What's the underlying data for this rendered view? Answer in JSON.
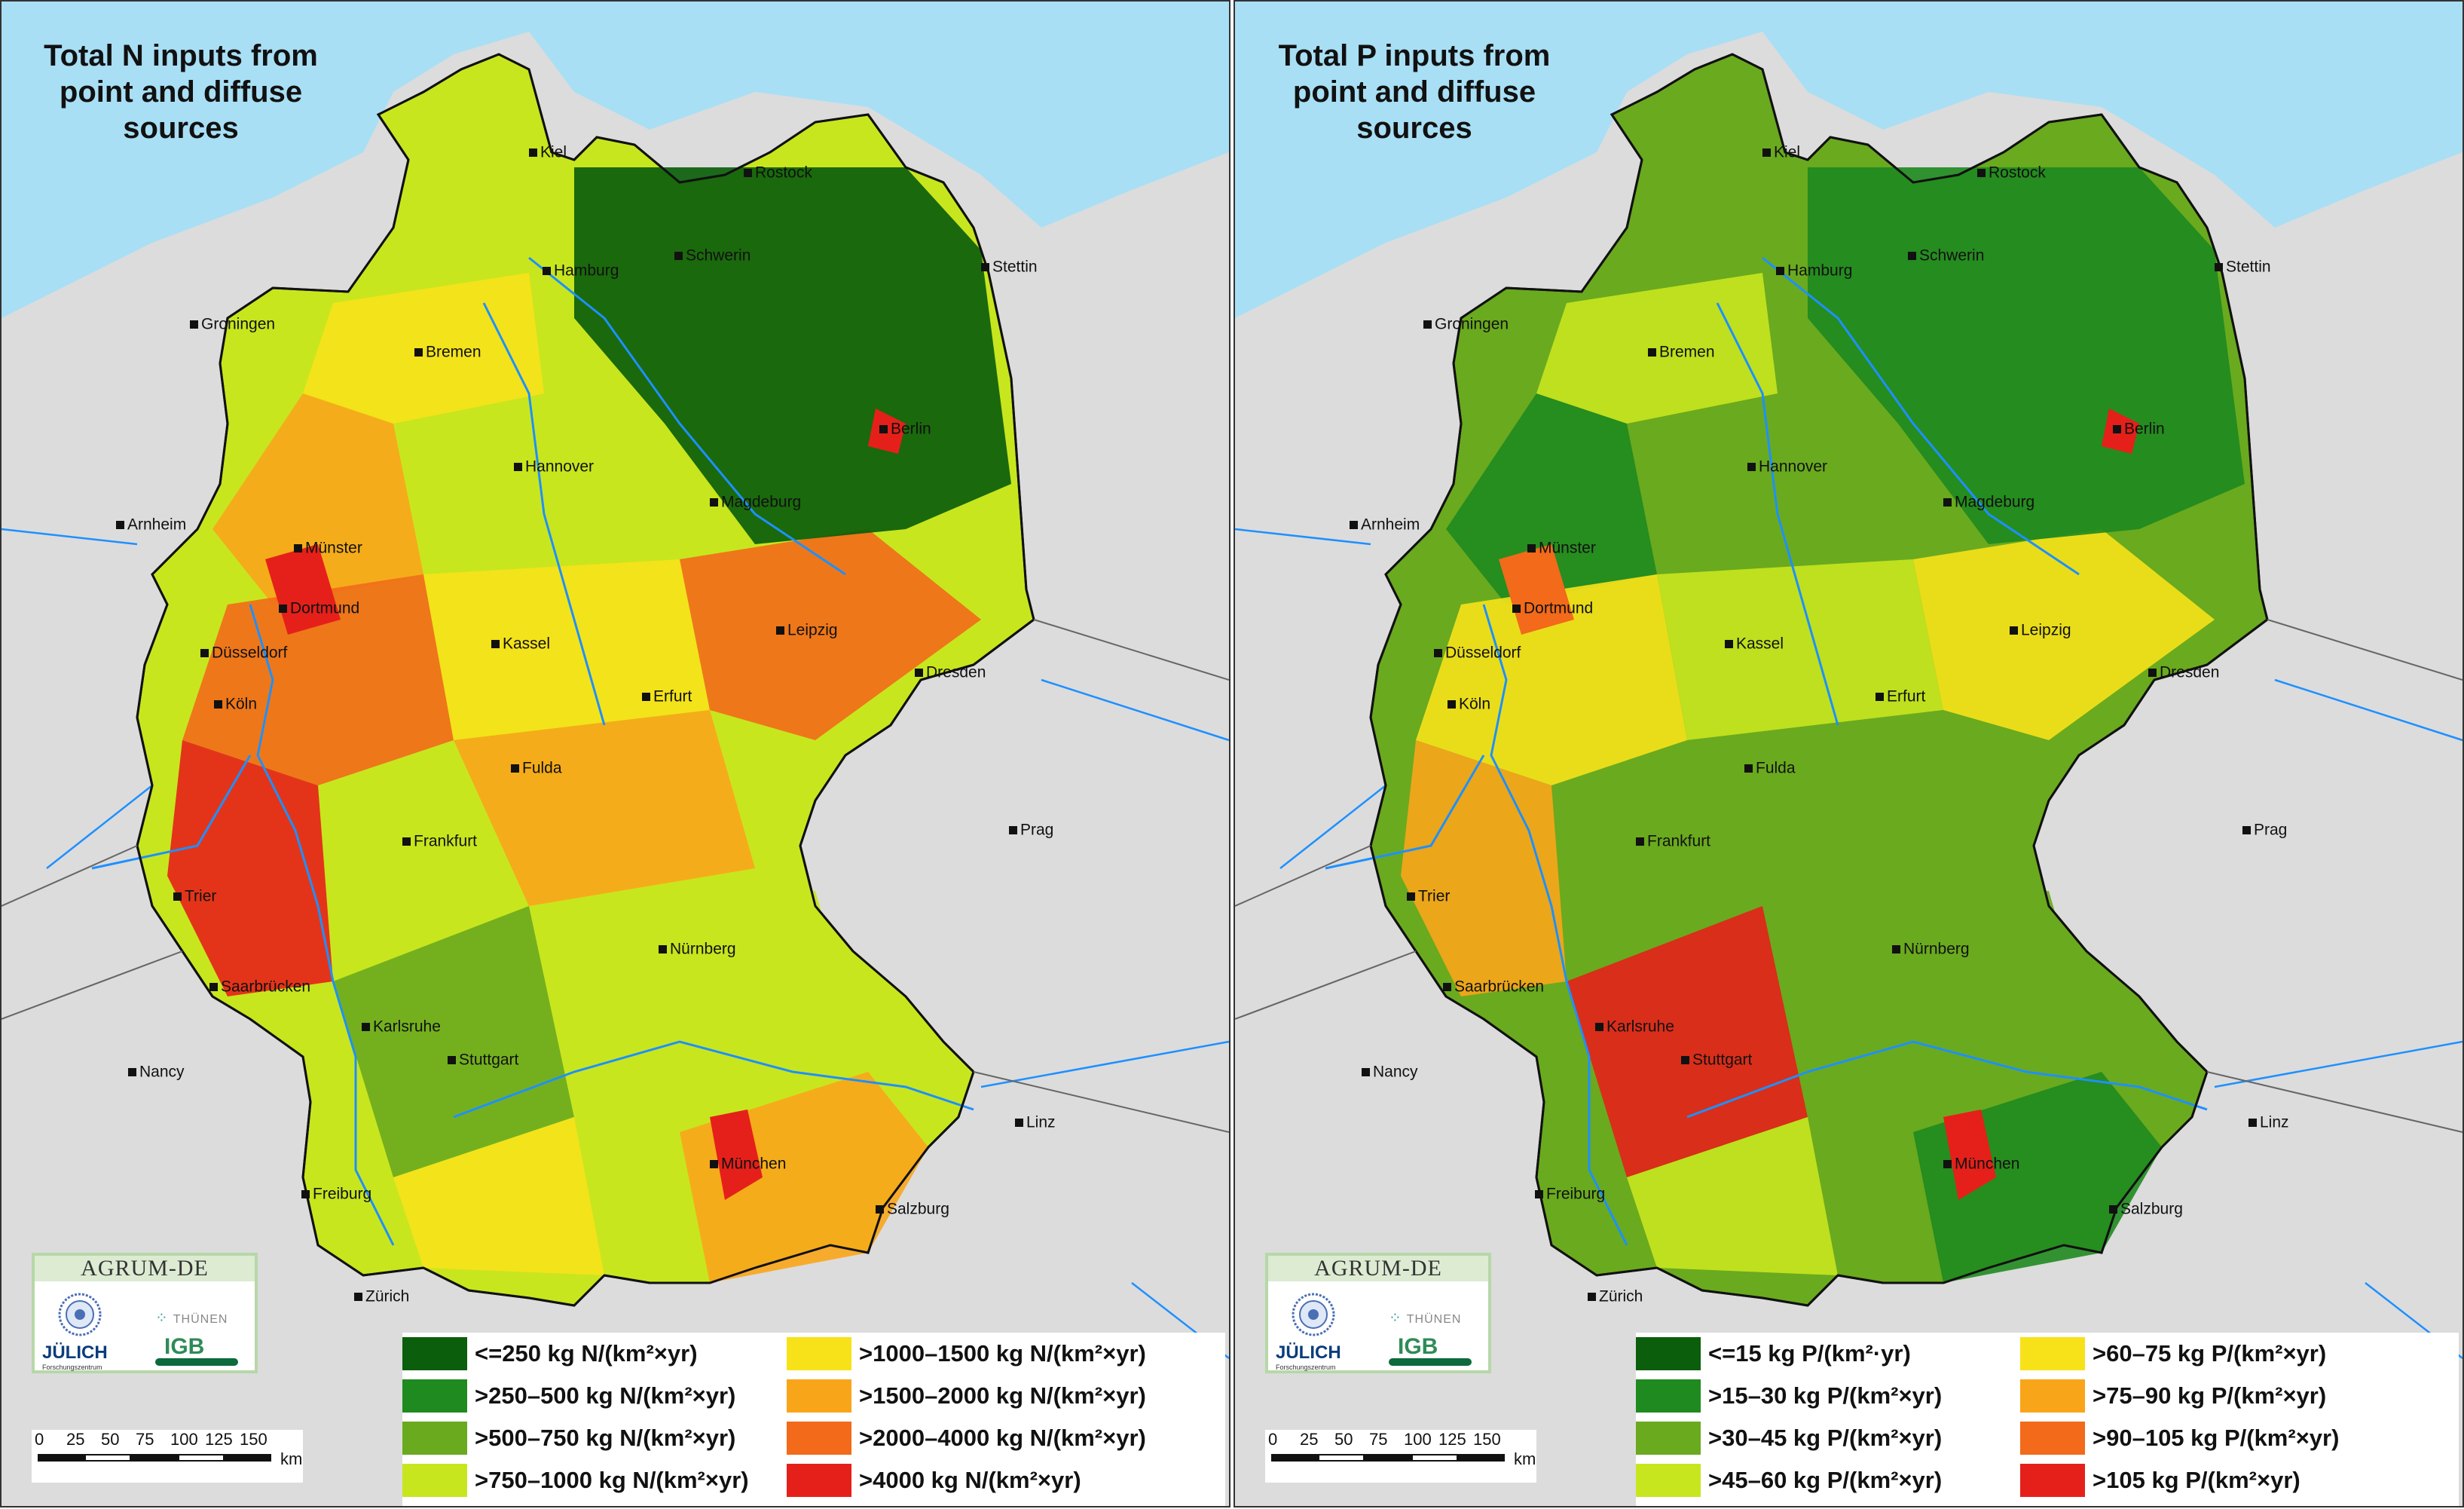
{
  "panels": [
    {
      "title_lines": [
        "Total N inputs from",
        "point and diffuse",
        "sources"
      ],
      "legend": [
        {
          "label": "<=250 kg N/(km²×yr)",
          "color": "#0b5e0b"
        },
        {
          "label": ">250–500 kg N/(km²×yr)",
          "color": "#1f8a1f"
        },
        {
          "label": ">500–750 kg N/(km²×yr)",
          "color": "#6aaa1e"
        },
        {
          "label": ">750–1000 kg N/(km²×yr)",
          "color": "#c8e61e"
        },
        {
          "label": ">1000–1500 kg N/(km²×yr)",
          "color": "#f7e21a"
        },
        {
          "label": ">1500–2000 kg N/(km²×yr)",
          "color": "#f9a51a"
        },
        {
          "label": ">2000–4000 kg N/(km²×yr)",
          "color": "#f26a1a"
        },
        {
          "label": ">4000 kg N/(km²×yr)",
          "color": "#e5201a"
        }
      ],
      "region_palette": [
        "#c8e61e",
        "#f7e21a",
        "#f9a51a",
        "#f26a1a",
        "#f7e21a",
        "#f9a51a",
        "#e5201a",
        "#6aaa1e"
      ]
    },
    {
      "title_lines": [
        "Total P inputs from",
        "point and diffuse",
        "sources"
      ],
      "legend": [
        {
          "label": "<=15 kg P/(km²·yr)",
          "color": "#0b5e0b"
        },
        {
          "label": ">15–30 kg P/(km²×yr)",
          "color": "#1f8a1f"
        },
        {
          "label": ">30–45 kg P/(km²×yr)",
          "color": "#6aaa1e"
        },
        {
          "label": ">45–60 kg P/(km²×yr)",
          "color": "#c8e61e"
        },
        {
          "label": ">60–75 kg P/(km²×yr)",
          "color": "#f7e21a"
        },
        {
          "label": ">75–90 kg P/(km²×yr)",
          "color": "#f9a51a"
        },
        {
          "label": ">90–105 kg P/(km²×yr)",
          "color": "#f26a1a"
        },
        {
          "label": ">105 kg P/(km²×yr)",
          "color": "#e5201a"
        }
      ],
      "region_palette": [
        "#6aaa1e",
        "#c8e61e",
        "#1f8a1f",
        "#f7e21a",
        "#c8e61e",
        "#6aaa1e",
        "#f9a51a",
        "#e5201a"
      ]
    }
  ],
  "cities": [
    {
      "name": "Kiel"
    },
    {
      "name": "Rostock"
    },
    {
      "name": "Hamburg"
    },
    {
      "name": "Schwerin"
    },
    {
      "name": "Stettin"
    },
    {
      "name": "Groningen"
    },
    {
      "name": "Bremen"
    },
    {
      "name": "Berlin"
    },
    {
      "name": "Hannover"
    },
    {
      "name": "Magdeburg"
    },
    {
      "name": "Arnheim"
    },
    {
      "name": "Münster"
    },
    {
      "name": "Dortmund"
    },
    {
      "name": "Düsseldorf"
    },
    {
      "name": "Kassel"
    },
    {
      "name": "Leipzig"
    },
    {
      "name": "Köln"
    },
    {
      "name": "Erfurt"
    },
    {
      "name": "Dresden"
    },
    {
      "name": "Fulda"
    },
    {
      "name": "Prag"
    },
    {
      "name": "Frankfurt"
    },
    {
      "name": "Trier"
    },
    {
      "name": "Nürnberg"
    },
    {
      "name": "Saarbrücken"
    },
    {
      "name": "Karlsruhe"
    },
    {
      "name": "Stuttgart"
    },
    {
      "name": "Nancy"
    },
    {
      "name": "Linz"
    },
    {
      "name": "München"
    },
    {
      "name": "Freiburg"
    },
    {
      "name": "Salzburg"
    },
    {
      "name": "Zürich"
    }
  ],
  "logo": {
    "brand": "AGRUM-DE",
    "thunen": "THÜNEN",
    "juelich": "JÜLICH",
    "juelich_sub": "Forschungszentrum",
    "igb": "IGB"
  },
  "scale": {
    "ticks": [
      "0",
      "25",
      "50",
      "75",
      "100",
      "125",
      "150"
    ],
    "unit": "km"
  },
  "colors": {
    "sea": "#a8dff5",
    "land_outside": "#dcdcdc",
    "border": "#666666",
    "river": "#1e90ff"
  }
}
